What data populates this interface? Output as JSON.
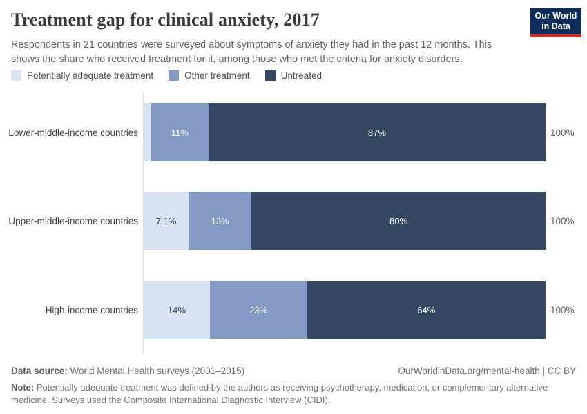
{
  "header": {
    "title": "Treatment gap for clinical anxiety, 2017",
    "subtitle": "Respondents in 21 countries were surveyed about symptoms of anxiety they had in the past 12 months. This shows the share who received treatment for it, among those who met the criteria for anxiety disorders.",
    "logo": {
      "line1": "Our World",
      "line2": "in Data",
      "bg_color": "#0d2e5a",
      "accent_color": "#d42b21"
    }
  },
  "legend": [
    {
      "label": "Potentially adequate treatment",
      "color": "#d7e3f2"
    },
    {
      "label": "Other treatment",
      "color": "#8499c4"
    },
    {
      "label": "Untreated",
      "color": "#344863"
    }
  ],
  "chart_data": {
    "type": "bar",
    "orientation": "horizontal",
    "stacked": true,
    "title": "Treatment gap for clinical anxiety, 2017",
    "categories": [
      "Lower-middle-income countries",
      "Upper-middle-income countries",
      "High-income countries"
    ],
    "series": [
      {
        "name": "Potentially adequate treatment",
        "color": "#d7e3f2",
        "values": [
          2,
          7.1,
          14
        ],
        "labels": [
          "",
          "7.1%",
          "14%"
        ],
        "label_style": "dark"
      },
      {
        "name": "Other treatment",
        "color": "#8499c4",
        "values": [
          11,
          13,
          23
        ],
        "labels": [
          "11%",
          "13%",
          "23%"
        ],
        "label_style": "light"
      },
      {
        "name": "Untreated",
        "color": "#344863",
        "values": [
          87,
          80,
          64
        ],
        "labels": [
          "87%",
          "80%",
          "64%"
        ],
        "label_style": "light"
      }
    ],
    "totals": [
      "100%",
      "100%",
      "100%"
    ],
    "xlim": [
      0,
      100
    ],
    "grid": false,
    "legend_position": "top"
  },
  "footer": {
    "source_label": "Data source:",
    "source_text": " World Mental Health surveys (2001–2015)",
    "credit": "OurWorldinData.org/mental-health | CC BY",
    "note_label": "Note:",
    "note_text": " Potentially adequate treatment was defined by the authors as receiving psychotherapy, medication, or complementary alternative medicine. Surveys used the Composite International Diagnostic Interview (CIDI)."
  }
}
